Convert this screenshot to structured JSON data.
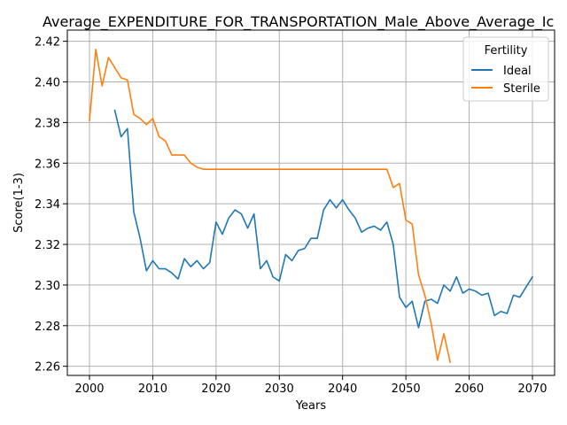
{
  "chart_data": {
    "type": "line",
    "title": "Average_EXPENDITURE_FOR_TRANSPORTATION_Male_Above_Average_Ic",
    "xlabel": "Years",
    "ylabel": "Score(1-3)",
    "xlim": [
      1996.5,
      2073.5
    ],
    "ylim": [
      2.2555,
      2.4255
    ],
    "xticks": [
      2000,
      2010,
      2020,
      2030,
      2040,
      2050,
      2060,
      2070
    ],
    "yticks": [
      2.26,
      2.28,
      2.3,
      2.32,
      2.34,
      2.36,
      2.38,
      2.4,
      2.42
    ],
    "ytick_labels": [
      "2.26",
      "2.28",
      "2.30",
      "2.32",
      "2.34",
      "2.36",
      "2.38",
      "2.40",
      "2.42"
    ],
    "grid": true,
    "legend": {
      "title": "Fertility",
      "placement": "top-right"
    },
    "series": [
      {
        "name": "Ideal",
        "color": "#1f77b4",
        "x": [
          2004,
          2005,
          2006,
          2007,
          2008,
          2009,
          2010,
          2011,
          2012,
          2013,
          2014,
          2015,
          2016,
          2017,
          2018,
          2019,
          2020,
          2021,
          2022,
          2023,
          2024,
          2025,
          2026,
          2027,
          2028,
          2029,
          2030,
          2031,
          2032,
          2033,
          2034,
          2035,
          2036,
          2037,
          2038,
          2039,
          2040,
          2041,
          2042,
          2043,
          2044,
          2045,
          2046,
          2047,
          2048,
          2049,
          2050,
          2051,
          2052,
          2053,
          2054,
          2055,
          2056,
          2057,
          2058,
          2059,
          2060,
          2061,
          2062,
          2063,
          2064,
          2065,
          2066,
          2067,
          2068,
          2069,
          2070
        ],
        "y": [
          2.386,
          2.373,
          2.377,
          2.336,
          2.323,
          2.307,
          2.312,
          2.308,
          2.308,
          2.306,
          2.303,
          2.313,
          2.309,
          2.312,
          2.308,
          2.311,
          2.331,
          2.325,
          2.333,
          2.337,
          2.335,
          2.328,
          2.335,
          2.308,
          2.312,
          2.304,
          2.302,
          2.315,
          2.312,
          2.317,
          2.318,
          2.323,
          2.323,
          2.337,
          2.342,
          2.338,
          2.342,
          2.337,
          2.333,
          2.326,
          2.328,
          2.329,
          2.327,
          2.331,
          2.32,
          2.294,
          2.289,
          2.292,
          2.279,
          2.292,
          2.293,
          2.291,
          2.3,
          2.297,
          2.304,
          2.296,
          2.298,
          2.297,
          2.295,
          2.296,
          2.285,
          2.287,
          2.286,
          2.295,
          2.294,
          2.299,
          2.304
        ]
      },
      {
        "name": "Sterile",
        "color": "#ff7f0e",
        "x": [
          2000,
          2001,
          2002,
          2003,
          2004,
          2005,
          2006,
          2007,
          2008,
          2009,
          2010,
          2011,
          2012,
          2013,
          2014,
          2015,
          2016,
          2017,
          2018,
          2019,
          2020,
          2021,
          2022,
          2023,
          2024,
          2025,
          2026,
          2027,
          2028,
          2029,
          2030,
          2031,
          2032,
          2033,
          2034,
          2035,
          2036,
          2037,
          2038,
          2039,
          2040,
          2041,
          2042,
          2043,
          2044,
          2045,
          2046,
          2047,
          2048,
          2049,
          2050,
          2051,
          2052,
          2053,
          2054,
          2055,
          2056,
          2057
        ],
        "y": [
          2.381,
          2.416,
          2.398,
          2.412,
          2.407,
          2.402,
          2.401,
          2.384,
          2.382,
          2.379,
          2.382,
          2.373,
          2.371,
          2.364,
          2.364,
          2.364,
          2.36,
          2.358,
          2.357,
          2.357,
          2.357,
          2.357,
          2.357,
          2.357,
          2.357,
          2.357,
          2.357,
          2.357,
          2.357,
          2.357,
          2.357,
          2.357,
          2.357,
          2.357,
          2.357,
          2.357,
          2.357,
          2.357,
          2.357,
          2.357,
          2.357,
          2.357,
          2.357,
          2.357,
          2.357,
          2.357,
          2.357,
          2.357,
          2.348,
          2.35,
          2.332,
          2.33,
          2.305,
          2.295,
          2.281,
          2.263,
          2.276,
          2.262
        ]
      }
    ]
  }
}
